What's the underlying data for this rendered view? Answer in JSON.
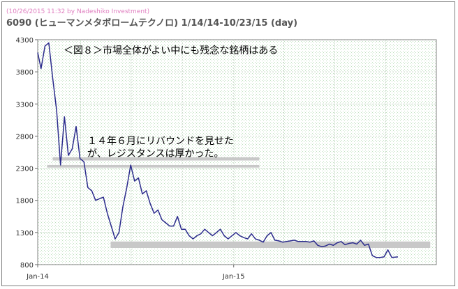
{
  "credit": "(10/26/2015 11:32 by Nadeshiko Investment)",
  "title": "6090 (ヒューマンメタボロームテクノロ)  1/14/14-10/23/15 (day)",
  "colors": {
    "line": "#2b2b8c",
    "band": "#c8c8c8",
    "plot_bg": "#f7fcf7",
    "grid": "#c9d9c9"
  },
  "chart_data": {
    "type": "line",
    "title": "6090 (ヒューマンメタボロームテクノロ)  1/14/14-10/23/15 (day)",
    "xlabel": "",
    "ylabel": "",
    "x_range": [
      "2014-01-14",
      "2015-12-31"
    ],
    "ylim": [
      800,
      4300
    ],
    "yticks": [
      800,
      1300,
      1800,
      2300,
      2800,
      3300,
      3800,
      4300
    ],
    "xtick_labels": [
      "Jan-14",
      "Jan-15"
    ],
    "grid": true,
    "series": [
      {
        "name": "",
        "x": [
          "2014-01-14",
          "2014-01-20",
          "2014-01-27",
          "2014-02-03",
          "2014-02-10",
          "2014-02-17",
          "2014-02-24",
          "2014-03-03",
          "2014-03-10",
          "2014-03-17",
          "2014-03-24",
          "2014-03-31",
          "2014-04-07",
          "2014-04-14",
          "2014-04-21",
          "2014-04-28",
          "2014-05-12",
          "2014-05-19",
          "2014-05-26",
          "2014-06-02",
          "2014-06-09",
          "2014-06-16",
          "2014-06-23",
          "2014-06-30",
          "2014-07-07",
          "2014-07-14",
          "2014-07-21",
          "2014-07-28",
          "2014-08-04",
          "2014-08-11",
          "2014-08-18",
          "2014-08-25",
          "2014-09-01",
          "2014-09-08",
          "2014-09-15",
          "2014-09-22",
          "2014-09-29",
          "2014-10-06",
          "2014-10-13",
          "2014-10-20",
          "2014-10-27",
          "2014-11-03",
          "2014-11-10",
          "2014-11-17",
          "2014-11-24",
          "2014-12-01",
          "2014-12-08",
          "2014-12-15",
          "2014-12-22",
          "2015-01-05",
          "2015-01-12",
          "2015-01-19",
          "2015-01-26",
          "2015-02-02",
          "2015-02-09",
          "2015-02-16",
          "2015-02-23",
          "2015-03-02",
          "2015-03-09",
          "2015-03-16",
          "2015-03-23",
          "2015-03-30",
          "2015-04-06",
          "2015-04-13",
          "2015-04-20",
          "2015-04-27",
          "2015-05-11",
          "2015-05-18",
          "2015-05-25",
          "2015-06-01",
          "2015-06-08",
          "2015-06-15",
          "2015-06-22",
          "2015-06-29",
          "2015-07-06",
          "2015-07-13",
          "2015-07-20",
          "2015-07-27",
          "2015-08-03",
          "2015-08-10",
          "2015-08-17",
          "2015-08-24",
          "2015-08-31",
          "2015-09-07",
          "2015-09-14",
          "2015-09-21",
          "2015-09-28",
          "2015-10-05",
          "2015-10-12",
          "2015-10-23"
        ],
        "y": [
          4100,
          3850,
          4200,
          4250,
          3700,
          3200,
          2350,
          3100,
          2500,
          2600,
          2950,
          2450,
          2400,
          2000,
          1950,
          1800,
          1850,
          1600,
          1400,
          1200,
          1300,
          1700,
          2000,
          2350,
          2100,
          2150,
          1900,
          1950,
          1750,
          1600,
          1650,
          1500,
          1450,
          1400,
          1400,
          1550,
          1350,
          1350,
          1250,
          1200,
          1250,
          1280,
          1350,
          1300,
          1250,
          1300,
          1350,
          1250,
          1200,
          1300,
          1250,
          1220,
          1200,
          1280,
          1200,
          1180,
          1150,
          1250,
          1300,
          1180,
          1170,
          1150,
          1160,
          1170,
          1180,
          1160,
          1160,
          1150,
          1170,
          1100,
          1080,
          1090,
          1120,
          1100,
          1140,
          1160,
          1110,
          1130,
          1140,
          1120,
          1180,
          1100,
          1120,
          940,
          910,
          910,
          920,
          1030,
          910,
          920
        ]
      }
    ],
    "bands": [
      {
        "y_from": 2420,
        "y_to": 2470,
        "x_start": "2014-02-10",
        "x_end": "2015-02-16"
      },
      {
        "y_from": 2310,
        "y_to": 2350,
        "x_start": "2014-01-31",
        "x_end": "2015-02-16"
      },
      {
        "y_from": 1060,
        "y_to": 1160,
        "x_start": "2014-05-25",
        "x_end": "2015-12-20"
      }
    ],
    "annotations": [
      "＜図８＞市場全体がよい中にも残念な銘柄はある",
      "１４年６月にリバウンドを見せた",
      "が、レジスタンスは厚かった。"
    ]
  }
}
